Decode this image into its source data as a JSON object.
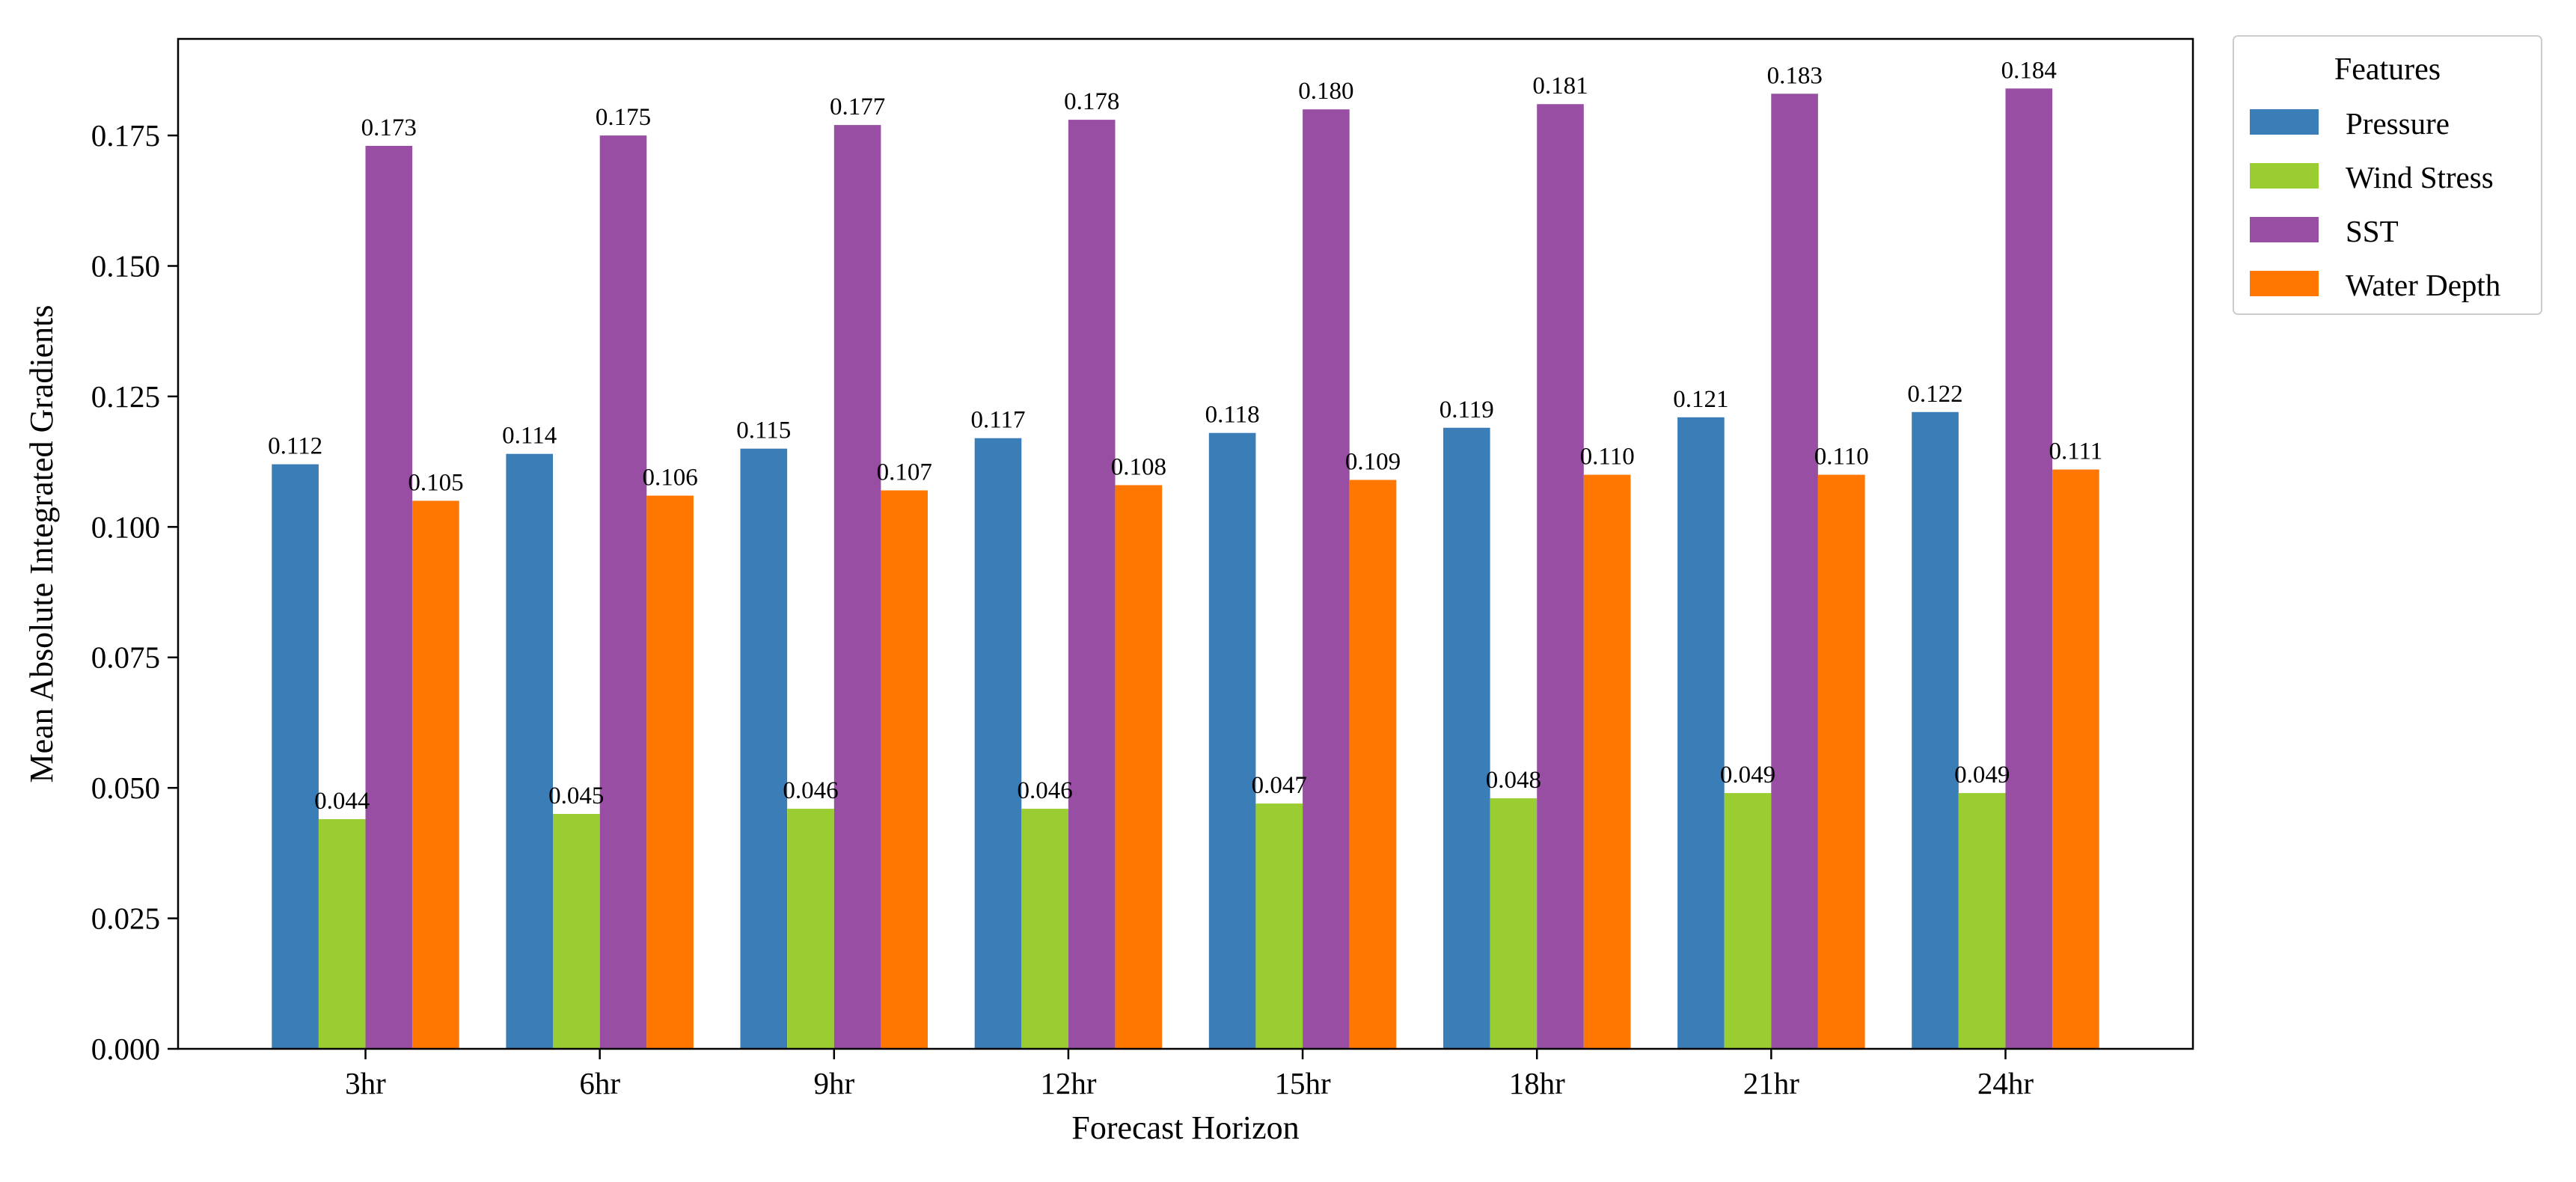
{
  "chart_data": {
    "type": "bar",
    "title": "",
    "xlabel": "Forecast Horizon",
    "ylabel": "Mean Absolute Integrated Gradients",
    "categories": [
      "3hr",
      "6hr",
      "9hr",
      "12hr",
      "15hr",
      "18hr",
      "21hr",
      "24hr"
    ],
    "ylim": [
      0,
      0.1935
    ],
    "yticks": [
      {
        "value": 0.0,
        "label": "0.000"
      },
      {
        "value": 0.025,
        "label": "0.025"
      },
      {
        "value": 0.05,
        "label": "0.050"
      },
      {
        "value": 0.075,
        "label": "0.075"
      },
      {
        "value": 0.1,
        "label": "0.100"
      },
      {
        "value": 0.125,
        "label": "0.125"
      },
      {
        "value": 0.15,
        "label": "0.150"
      },
      {
        "value": 0.175,
        "label": "0.175"
      }
    ],
    "grid": false,
    "legend": {
      "title": "Features",
      "placement": "outside-top-right"
    },
    "series": [
      {
        "name": "Pressure",
        "color": "#3a7db7",
        "values": [
          0.112,
          0.114,
          0.115,
          0.117,
          0.118,
          0.119,
          0.121,
          0.122
        ],
        "labels": [
          "0.112",
          "0.114",
          "0.115",
          "0.117",
          "0.118",
          "0.119",
          "0.121",
          "0.122"
        ]
      },
      {
        "name": "Wind Stress",
        "color": "#9acd32",
        "values": [
          0.044,
          0.045,
          0.046,
          0.046,
          0.047,
          0.048,
          0.049,
          0.049
        ],
        "labels": [
          "0.044",
          "0.045",
          "0.046",
          "0.046",
          "0.047",
          "0.048",
          "0.049",
          "0.049"
        ]
      },
      {
        "name": "SST",
        "color": "#984ea3",
        "values": [
          0.173,
          0.175,
          0.177,
          0.178,
          0.18,
          0.181,
          0.183,
          0.184
        ],
        "labels": [
          "0.173",
          "0.175",
          "0.177",
          "0.178",
          "0.180",
          "0.181",
          "0.183",
          "0.184"
        ]
      },
      {
        "name": "Water Depth",
        "color": "#ff7700",
        "values": [
          0.105,
          0.106,
          0.107,
          0.108,
          0.109,
          0.11,
          0.11,
          0.111
        ],
        "labels": [
          "0.105",
          "0.106",
          "0.107",
          "0.108",
          "0.109",
          "0.110",
          "0.110",
          "0.111"
        ]
      }
    ]
  }
}
